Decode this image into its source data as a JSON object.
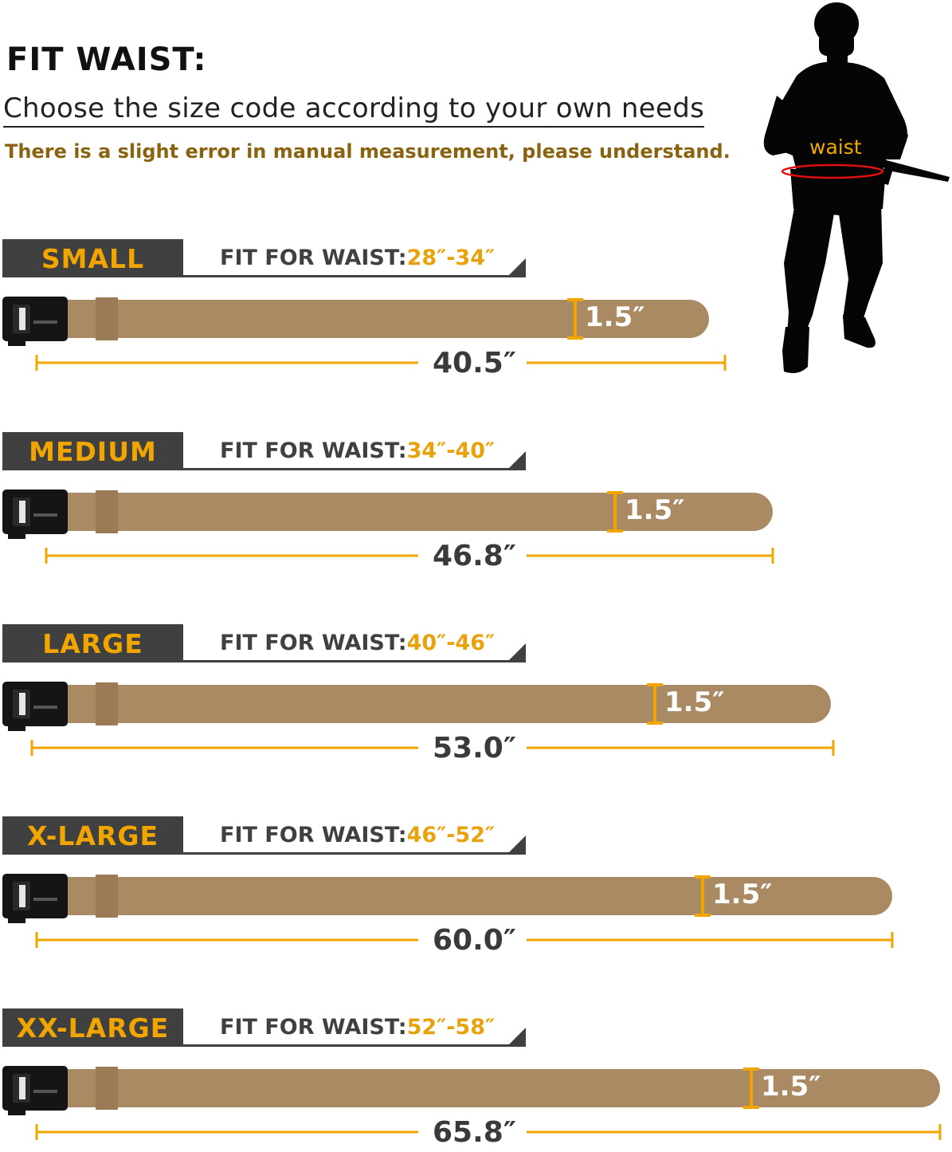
{
  "header": {
    "title": "FIT WAIST:",
    "subtitle": "Choose the size code according to your own needs",
    "note": "There is a slight error in manual measurement, please understand."
  },
  "figure": {
    "waist_label": "waist"
  },
  "fit_prefix": "FIT FOR WAIST:",
  "sizes": [
    {
      "name": "SMALL",
      "fit_range": "28″-34″",
      "length": "40.5″",
      "width": "1.5″"
    },
    {
      "name": "MEDIUM",
      "fit_range": "34″-40″",
      "length": "46.8″",
      "width": "1.5″"
    },
    {
      "name": "LARGE",
      "fit_range": "40″-46″",
      "length": "53.0″",
      "width": "1.5″"
    },
    {
      "name": "X-LARGE",
      "fit_range": "46″-52″",
      "length": "60.0″",
      "width": "1.5″"
    },
    {
      "name": "XX-LARGE",
      "fit_range": "52″-58″",
      "length": "65.8″",
      "width": "1.5″"
    }
  ],
  "colors": {
    "belt": "#a98a63",
    "accent": "#f0a500",
    "tag_bg": "#404040",
    "waist_ring": "#e01010"
  }
}
